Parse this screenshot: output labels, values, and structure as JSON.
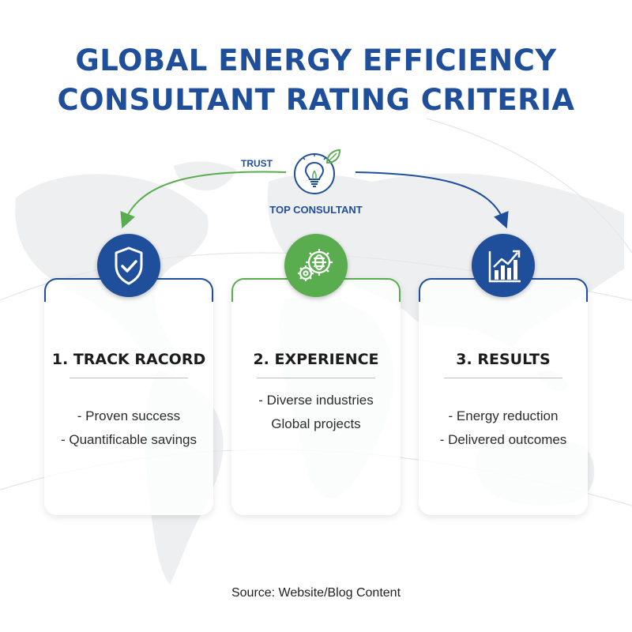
{
  "title": {
    "line1": "GLOBAL ENERGY EFFICIENCY",
    "line2": "CONSULTANT RATING CRITERIA"
  },
  "hub": {
    "label": "TOP CONSULTANT",
    "icon": "lightbulb-leaf-icon",
    "left_arrow_label": "TRUST"
  },
  "cards": [
    {
      "title": "1. TRACK RACORD",
      "icon": "shield-check-icon",
      "color": "#1f4e9a",
      "items": [
        "- Proven success",
        "- Quantificable savings"
      ]
    },
    {
      "title": "2. EXPERIENCE",
      "icon": "gears-globe-icon",
      "color": "#5aad4e",
      "items": [
        "- Diverse industries",
        "Global projects"
      ]
    },
    {
      "title": "3. RESULTS",
      "icon": "bar-chart-growth-icon",
      "color": "#1f4e9a",
      "items": [
        "- Energy reduction",
        "- Delivered outcomes"
      ]
    }
  ],
  "source": "Source: Website/Blog Content",
  "colors": {
    "primary_blue": "#1f4e9a",
    "accent_green": "#5aad4e"
  }
}
